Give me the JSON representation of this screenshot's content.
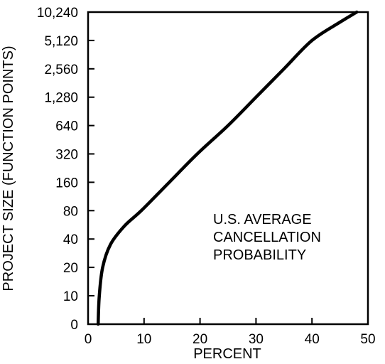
{
  "chart_data": {
    "type": "line",
    "title": "",
    "xlabel": "PERCENT",
    "ylabel": "PROJECT SIZE (FUNCTION POINTS)",
    "xlim": [
      0,
      50
    ],
    "x_ticks": [
      "0",
      "10",
      "20",
      "30",
      "40",
      "50"
    ],
    "y_tick_values": [
      0,
      10,
      20,
      40,
      80,
      160,
      320,
      640,
      1280,
      2560,
      5120,
      10240
    ],
    "y_ticks": [
      "0",
      "10",
      "20",
      "40",
      "80",
      "160",
      "320",
      "640",
      "1,280",
      "2,560",
      "5,120",
      "10,240"
    ],
    "y_scale": "log2 (0 shown at bottom)",
    "grid": false,
    "annotation": [
      "U.S. AVERAGE",
      "CANCELLATION",
      "PROBABILITY"
    ],
    "series": [
      {
        "values": [
          {
            "x": 1.8,
            "y": 5
          },
          {
            "x": 2.0,
            "y": 10
          },
          {
            "x": 2.6,
            "y": 20
          },
          {
            "x": 4.0,
            "y": 35
          },
          {
            "x": 6.5,
            "y": 55
          },
          {
            "x": 9.5,
            "y": 80
          },
          {
            "x": 14.5,
            "y": 160
          },
          {
            "x": 19.5,
            "y": 320
          },
          {
            "x": 25.0,
            "y": 640
          },
          {
            "x": 30.0,
            "y": 1280
          },
          {
            "x": 35.0,
            "y": 2560
          },
          {
            "x": 40.0,
            "y": 5120
          },
          {
            "x": 45.0,
            "y": 8000
          },
          {
            "x": 48.0,
            "y": 10240
          }
        ]
      }
    ]
  }
}
